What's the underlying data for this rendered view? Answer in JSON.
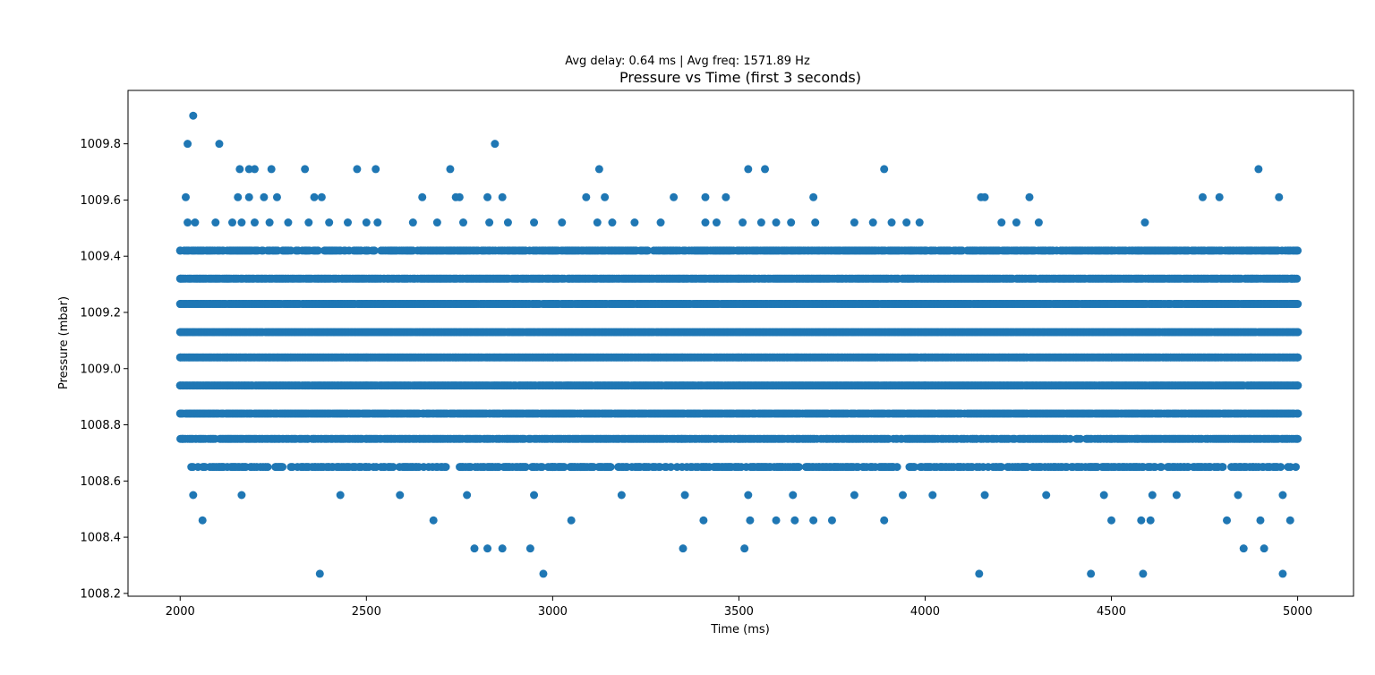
{
  "chart_data": {
    "type": "scatter",
    "suptitle": "Avg delay: 0.64 ms | Avg freq: 1571.89 Hz",
    "title": "Pressure vs Time (first 3 seconds)",
    "xlabel": "Time (ms)",
    "ylabel": "Pressure (mbar)",
    "xlim": [
      1860,
      5150
    ],
    "ylim": [
      1008.19,
      1009.99
    ],
    "xticks": [
      2000,
      2500,
      3000,
      3500,
      4000,
      4500,
      5000
    ],
    "xtick_labels": [
      "2000",
      "2500",
      "3000",
      "3500",
      "4000",
      "4500",
      "5000"
    ],
    "yticks": [
      1008.2,
      1008.4,
      1008.6,
      1008.8,
      1009.0,
      1009.2,
      1009.4,
      1009.6,
      1009.8
    ],
    "ytick_labels": [
      "1008.2",
      "1008.4",
      "1008.6",
      "1008.8",
      "1009.0",
      "1009.2",
      "1009.4",
      "1009.6",
      "1009.8"
    ],
    "grid": false,
    "marker_color": "#1f77b4",
    "series": [
      {
        "levels": [
          1008.27,
          1008.36,
          1008.46,
          1008.55,
          1008.65,
          1008.75,
          1008.84,
          1008.94,
          1009.04,
          1009.13,
          1009.23,
          1009.32,
          1009.42,
          1009.52,
          1009.61,
          1009.71,
          1009.8,
          1009.9
        ],
        "sampling": "each reading lies on one of the 'levels'; times are continuous between 2000 and 5000 ms",
        "points": [
          [
            2035,
            1009.9
          ],
          [
            2020,
            1009.8
          ],
          [
            2105,
            1009.8
          ],
          [
            2845,
            1009.8
          ],
          [
            2160,
            1009.71
          ],
          [
            2185,
            1009.71
          ],
          [
            2200,
            1009.71
          ],
          [
            2245,
            1009.71
          ],
          [
            2335,
            1009.71
          ],
          [
            2475,
            1009.71
          ],
          [
            2525,
            1009.71
          ],
          [
            2725,
            1009.71
          ],
          [
            3125,
            1009.71
          ],
          [
            3525,
            1009.71
          ],
          [
            3570,
            1009.71
          ],
          [
            3890,
            1009.71
          ],
          [
            4895,
            1009.71
          ],
          [
            2015,
            1009.61
          ],
          [
            2155,
            1009.61
          ],
          [
            2185,
            1009.61
          ],
          [
            2225,
            1009.61
          ],
          [
            2260,
            1009.61
          ],
          [
            2360,
            1009.61
          ],
          [
            2380,
            1009.61
          ],
          [
            2650,
            1009.61
          ],
          [
            2740,
            1009.61
          ],
          [
            2750,
            1009.61
          ],
          [
            2825,
            1009.61
          ],
          [
            2865,
            1009.61
          ],
          [
            3090,
            1009.61
          ],
          [
            3140,
            1009.61
          ],
          [
            3325,
            1009.61
          ],
          [
            3410,
            1009.61
          ],
          [
            3465,
            1009.61
          ],
          [
            3700,
            1009.61
          ],
          [
            4150,
            1009.61
          ],
          [
            4160,
            1009.61
          ],
          [
            4280,
            1009.61
          ],
          [
            4745,
            1009.61
          ],
          [
            4790,
            1009.61
          ],
          [
            4950,
            1009.61
          ],
          [
            2020,
            1009.52
          ],
          [
            2040,
            1009.52
          ],
          [
            2095,
            1009.52
          ],
          [
            2140,
            1009.52
          ],
          [
            2165,
            1009.52
          ],
          [
            2200,
            1009.52
          ],
          [
            2240,
            1009.52
          ],
          [
            2290,
            1009.52
          ],
          [
            2345,
            1009.52
          ],
          [
            2400,
            1009.52
          ],
          [
            2450,
            1009.52
          ],
          [
            2500,
            1009.52
          ],
          [
            2530,
            1009.52
          ],
          [
            2625,
            1009.52
          ],
          [
            2690,
            1009.52
          ],
          [
            2760,
            1009.52
          ],
          [
            2830,
            1009.52
          ],
          [
            2880,
            1009.52
          ],
          [
            2950,
            1009.52
          ],
          [
            3025,
            1009.52
          ],
          [
            3120,
            1009.52
          ],
          [
            3160,
            1009.52
          ],
          [
            3220,
            1009.52
          ],
          [
            3290,
            1009.52
          ],
          [
            3410,
            1009.52
          ],
          [
            3440,
            1009.52
          ],
          [
            3510,
            1009.52
          ],
          [
            3560,
            1009.52
          ],
          [
            3600,
            1009.52
          ],
          [
            3640,
            1009.52
          ],
          [
            3705,
            1009.52
          ],
          [
            3810,
            1009.52
          ],
          [
            3860,
            1009.52
          ],
          [
            3910,
            1009.52
          ],
          [
            3950,
            1009.52
          ],
          [
            3985,
            1009.52
          ],
          [
            4205,
            1009.52
          ],
          [
            4245,
            1009.52
          ],
          [
            4305,
            1009.52
          ],
          [
            4590,
            1009.52
          ],
          [
            2000,
            1009.42
          ],
          [
            2500,
            1009.42
          ],
          [
            3000,
            1009.42
          ],
          [
            3500,
            1009.42
          ],
          [
            4000,
            1009.42
          ],
          [
            4500,
            1009.42
          ],
          [
            5000,
            1009.42
          ],
          [
            2000,
            1009.32
          ],
          [
            2500,
            1009.32
          ],
          [
            3000,
            1009.32
          ],
          [
            3500,
            1009.32
          ],
          [
            4000,
            1009.32
          ],
          [
            4500,
            1009.32
          ],
          [
            4985,
            1009.32
          ],
          [
            2000,
            1009.23
          ],
          [
            2500,
            1009.23
          ],
          [
            3000,
            1009.23
          ],
          [
            3500,
            1009.23
          ],
          [
            4000,
            1009.23
          ],
          [
            4500,
            1009.23
          ],
          [
            4985,
            1009.23
          ],
          [
            2000,
            1009.13
          ],
          [
            2500,
            1009.13
          ],
          [
            3000,
            1009.13
          ],
          [
            3500,
            1009.13
          ],
          [
            4000,
            1009.13
          ],
          [
            4500,
            1009.13
          ],
          [
            5000,
            1009.13
          ],
          [
            2000,
            1009.04
          ],
          [
            2500,
            1009.04
          ],
          [
            3000,
            1009.04
          ],
          [
            3500,
            1009.04
          ],
          [
            4000,
            1009.04
          ],
          [
            4500,
            1009.04
          ],
          [
            5000,
            1009.04
          ],
          [
            2000,
            1008.94
          ],
          [
            2500,
            1008.94
          ],
          [
            3000,
            1008.94
          ],
          [
            3500,
            1008.94
          ],
          [
            4000,
            1008.94
          ],
          [
            4500,
            1008.94
          ],
          [
            5000,
            1008.94
          ],
          [
            2000,
            1008.84
          ],
          [
            2500,
            1008.84
          ],
          [
            3000,
            1008.84
          ],
          [
            3500,
            1008.84
          ],
          [
            4000,
            1008.84
          ],
          [
            4500,
            1008.84
          ],
          [
            5000,
            1008.84
          ],
          [
            2005,
            1008.75
          ],
          [
            2500,
            1008.75
          ],
          [
            3000,
            1008.75
          ],
          [
            3500,
            1008.75
          ],
          [
            4000,
            1008.75
          ],
          [
            4500,
            1008.75
          ],
          [
            5000,
            1008.75
          ],
          [
            2030,
            1008.65
          ],
          [
            2500,
            1008.65
          ],
          [
            3000,
            1008.65
          ],
          [
            3500,
            1008.65
          ],
          [
            4000,
            1008.65
          ],
          [
            4500,
            1008.65
          ],
          [
            4995,
            1008.65
          ],
          [
            2035,
            1008.55
          ],
          [
            2165,
            1008.55
          ],
          [
            2430,
            1008.55
          ],
          [
            2590,
            1008.55
          ],
          [
            2770,
            1008.55
          ],
          [
            2950,
            1008.55
          ],
          [
            3185,
            1008.55
          ],
          [
            3355,
            1008.55
          ],
          [
            3525,
            1008.55
          ],
          [
            3645,
            1008.55
          ],
          [
            3810,
            1008.55
          ],
          [
            3940,
            1008.55
          ],
          [
            4020,
            1008.55
          ],
          [
            4160,
            1008.55
          ],
          [
            4325,
            1008.55
          ],
          [
            4480,
            1008.55
          ],
          [
            4610,
            1008.55
          ],
          [
            4675,
            1008.55
          ],
          [
            4840,
            1008.55
          ],
          [
            4960,
            1008.55
          ],
          [
            2060,
            1008.46
          ],
          [
            2680,
            1008.46
          ],
          [
            3050,
            1008.46
          ],
          [
            3405,
            1008.46
          ],
          [
            3530,
            1008.46
          ],
          [
            3600,
            1008.46
          ],
          [
            3650,
            1008.46
          ],
          [
            3700,
            1008.46
          ],
          [
            3750,
            1008.46
          ],
          [
            3890,
            1008.46
          ],
          [
            4500,
            1008.46
          ],
          [
            4580,
            1008.46
          ],
          [
            4605,
            1008.46
          ],
          [
            4810,
            1008.46
          ],
          [
            4900,
            1008.46
          ],
          [
            4980,
            1008.46
          ],
          [
            2790,
            1008.36
          ],
          [
            2825,
            1008.36
          ],
          [
            2865,
            1008.36
          ],
          [
            2940,
            1008.36
          ],
          [
            3350,
            1008.36
          ],
          [
            3515,
            1008.36
          ],
          [
            4855,
            1008.36
          ],
          [
            4910,
            1008.36
          ],
          [
            2375,
            1008.27
          ],
          [
            2975,
            1008.27
          ],
          [
            4145,
            1008.27
          ],
          [
            4445,
            1008.27
          ],
          [
            4585,
            1008.27
          ],
          [
            4960,
            1008.27
          ]
        ]
      }
    ]
  }
}
